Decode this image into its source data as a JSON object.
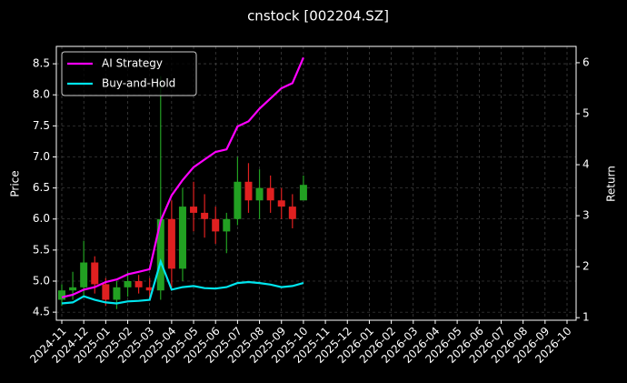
{
  "chart_data": {
    "type": "candlestick",
    "title": "cnstock [002204.SZ]",
    "ylabel": "Price",
    "y2label": "Return",
    "categories": [
      "2024-11",
      null,
      "2024-12",
      null,
      "2025-01",
      null,
      "2025-02",
      null,
      "2025-03",
      null,
      "2025-04",
      null,
      "2025-05",
      null,
      "2025-06",
      null,
      "2025-07",
      null,
      "2025-08",
      null,
      "2025-09",
      null,
      "2025-10",
      null,
      "2025-11",
      null,
      "2025-12",
      null,
      "2026-01",
      null,
      "2026-02",
      null,
      "2026-03",
      null,
      "2026-04",
      null,
      "2026-05",
      null,
      "2026-06",
      null,
      "2026-07",
      null,
      "2026-08",
      null,
      "2026-09",
      null,
      "2026-10",
      null
    ],
    "open": [
      4.7,
      4.85,
      4.9,
      5.3,
      4.95,
      4.7,
      4.9,
      5.0,
      4.9,
      4.85,
      6.0,
      5.2,
      6.2,
      6.1,
      6.0,
      5.8,
      6.0,
      6.6,
      6.3,
      6.5,
      6.3,
      6.2,
      6.3,
      null,
      null,
      null,
      null,
      null,
      null,
      null,
      null,
      null,
      null,
      null,
      null,
      null,
      null,
      null,
      null,
      null,
      null,
      null,
      null,
      null,
      null,
      null,
      null,
      null
    ],
    "high": [
      4.95,
      5.15,
      5.65,
      5.4,
      5.05,
      5.0,
      5.15,
      5.1,
      5.05,
      8.3,
      6.3,
      6.5,
      6.6,
      6.4,
      6.2,
      6.1,
      7.0,
      6.9,
      6.8,
      6.7,
      6.5,
      6.4,
      6.7,
      null,
      null,
      null,
      null,
      null,
      null,
      null,
      null,
      null,
      null,
      null,
      null,
      null,
      null,
      null,
      null,
      null,
      null,
      null,
      null,
      null,
      null,
      null,
      null,
      null
    ],
    "low": [
      4.6,
      4.7,
      4.75,
      4.8,
      4.6,
      4.55,
      4.75,
      4.8,
      4.7,
      4.7,
      4.9,
      5.0,
      5.8,
      5.7,
      5.6,
      5.45,
      5.9,
      6.1,
      6.0,
      6.1,
      6.0,
      5.85,
      6.3,
      null,
      null,
      null,
      null,
      null,
      null,
      null,
      null,
      null,
      null,
      null,
      null,
      null,
      null,
      null,
      null,
      null,
      null,
      null,
      null,
      null,
      null,
      null,
      null,
      null
    ],
    "close": [
      4.85,
      4.9,
      5.3,
      4.95,
      4.7,
      4.9,
      5.0,
      4.9,
      4.85,
      6.0,
      5.2,
      6.2,
      6.1,
      6.0,
      5.8,
      6.0,
      6.6,
      6.3,
      6.5,
      6.3,
      6.2,
      6.0,
      6.55,
      null,
      null,
      null,
      null,
      null,
      null,
      null,
      null,
      null,
      null,
      null,
      null,
      null,
      null,
      null,
      null,
      null,
      null,
      null,
      null,
      null,
      null,
      null,
      null,
      null
    ],
    "up_color": "#22a022",
    "down_color": "#e02020",
    "series": [
      {
        "name": "AI Strategy",
        "color": "#ff00ff",
        "axis": "y2",
        "values": [
          1.4,
          1.45,
          1.55,
          1.6,
          1.7,
          1.75,
          1.85,
          1.9,
          1.95,
          2.9,
          3.4,
          3.7,
          3.95,
          4.1,
          4.25,
          4.3,
          4.75,
          4.85,
          5.1,
          5.3,
          5.5,
          5.6,
          6.1,
          null,
          null,
          null,
          null,
          null,
          null,
          null,
          null,
          null,
          null,
          null,
          null,
          null,
          null,
          null,
          null,
          null,
          null,
          null,
          null,
          null,
          null,
          null,
          null,
          null
        ]
      },
      {
        "name": "Buy-and-Hold",
        "color": "#00e5ee",
        "axis": "y2",
        "values": [
          1.28,
          1.3,
          1.42,
          1.35,
          1.3,
          1.28,
          1.32,
          1.33,
          1.35,
          2.1,
          1.55,
          1.6,
          1.62,
          1.58,
          1.57,
          1.6,
          1.68,
          1.7,
          1.68,
          1.65,
          1.6,
          1.62,
          1.68,
          null,
          null,
          null,
          null,
          null,
          null,
          null,
          null,
          null,
          null,
          null,
          null,
          null,
          null,
          null,
          null,
          null,
          null,
          null,
          null,
          null,
          null,
          null,
          null,
          null
        ]
      }
    ],
    "ylim": [
      4.37,
      8.78
    ],
    "yticks": [
      4.5,
      {
        "value": 5,
        "label": "5.0"
      },
      5.5,
      {
        "value": 6,
        "label": "6.0"
      },
      6.5,
      {
        "value": 7,
        "label": "7.0"
      },
      7.5,
      {
        "value": 8,
        "label": "8.0"
      },
      8.5
    ],
    "y2lim": [
      0.95,
      6.32
    ],
    "y2ticks": [
      1,
      2,
      3,
      4,
      5,
      6
    ],
    "grid": true,
    "legend": "upper left"
  }
}
